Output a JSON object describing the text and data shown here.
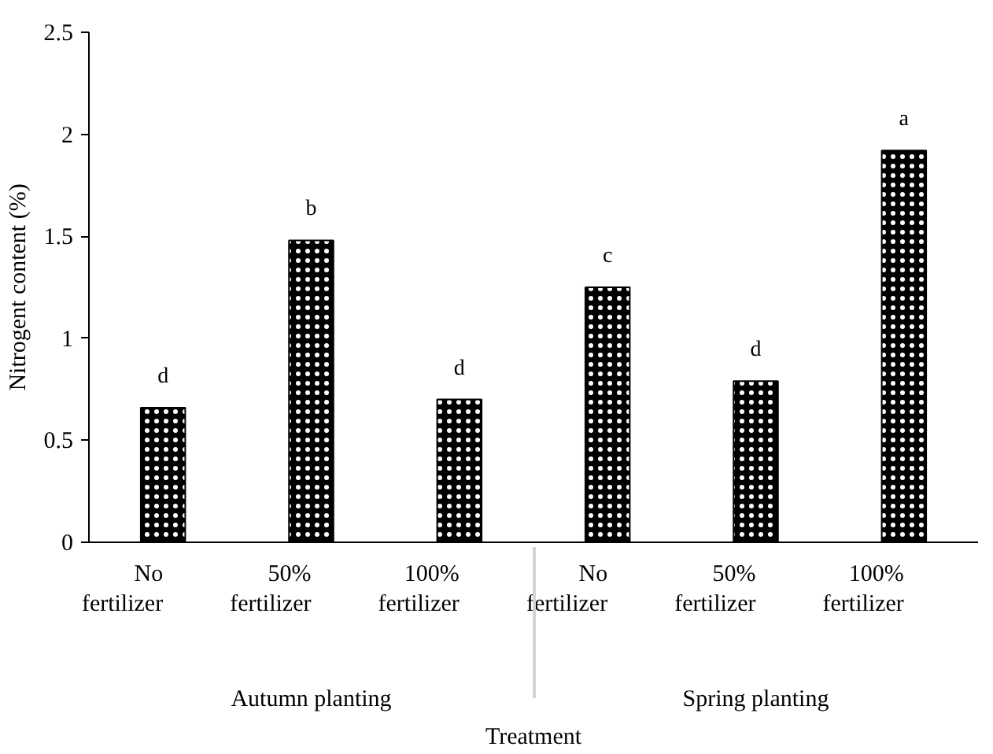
{
  "chart_data": {
    "type": "bar",
    "xlabel": "Treatment",
    "ylabel": "Nitrogent content (%)",
    "categories": [
      "No fertilizer",
      "50% fertilizer",
      "100% fertilizer",
      "No fertilizer",
      "50% fertilizer",
      "100% fertilizer"
    ],
    "annotations": [
      "Autumn planting",
      "Spring planting"
    ],
    "values": [
      0.66,
      1.48,
      0.7,
      1.25,
      0.79,
      1.92
    ],
    "value_labels": [
      "d",
      "b",
      "d",
      "c",
      "d",
      "a"
    ],
    "color": "#000000",
    "ylim": [
      0,
      2.5
    ],
    "yticks": [
      0,
      0.5,
      1,
      1.5,
      2,
      2.5
    ],
    "grid": false
  }
}
